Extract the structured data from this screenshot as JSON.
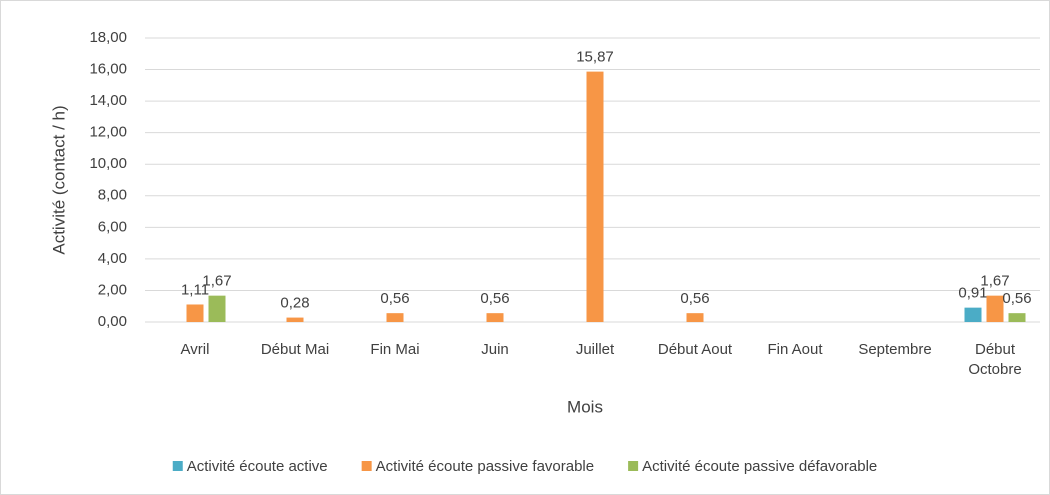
{
  "chart_data": {
    "type": "bar",
    "categories": [
      "Avril",
      "Début Mai",
      "Fin Mai",
      "Juin",
      "Juillet",
      "Début Aout",
      "Fin Aout",
      "Septembre",
      "Début Octobre"
    ],
    "series": [
      {
        "name": "Activité écoute active",
        "color": "#4bacc6",
        "values": [
          null,
          null,
          null,
          null,
          null,
          null,
          null,
          null,
          0.91
        ],
        "value_labels": [
          null,
          null,
          null,
          null,
          null,
          null,
          null,
          null,
          "0,91"
        ]
      },
      {
        "name": "Activité écoute passive favorable",
        "color": "#f79646",
        "values": [
          1.11,
          0.28,
          0.56,
          0.56,
          15.87,
          0.56,
          null,
          null,
          1.67
        ],
        "value_labels": [
          "1,11",
          "0,28",
          "0,56",
          "0,56",
          "15,87",
          "0,56",
          null,
          null,
          "1,67"
        ]
      },
      {
        "name": "Activité écoute passive défavorable",
        "color": "#9bbb59",
        "values": [
          1.67,
          null,
          null,
          null,
          null,
          null,
          null,
          null,
          0.56
        ],
        "value_labels": [
          "1,67",
          null,
          null,
          null,
          null,
          null,
          null,
          null,
          "0,56"
        ]
      }
    ],
    "x_label": "Mois",
    "y_label": "Activité (contact / h)",
    "ylim": [
      0,
      18
    ],
    "yticks": [
      {
        "value": 0,
        "label": "0,00"
      },
      {
        "value": 2,
        "label": "2,00"
      },
      {
        "value": 4,
        "label": "4,00"
      },
      {
        "value": 6,
        "label": "6,00"
      },
      {
        "value": 8,
        "label": "8,00"
      },
      {
        "value": 10,
        "label": "10,00"
      },
      {
        "value": 12,
        "label": "12,00"
      },
      {
        "value": 14,
        "label": "14,00"
      },
      {
        "value": 16,
        "label": "16,00"
      },
      {
        "value": 18,
        "label": "18,00"
      }
    ],
    "grid": true,
    "legend": "bottom"
  }
}
